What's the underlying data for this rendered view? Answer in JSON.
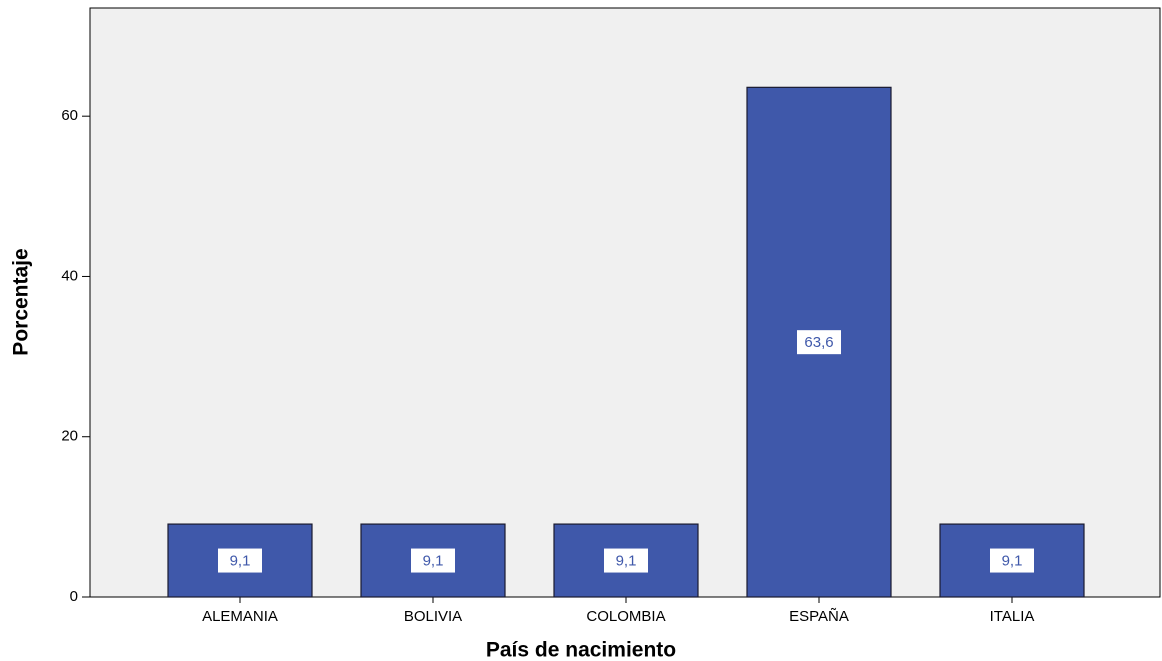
{
  "chart_data": {
    "type": "bar",
    "x_label": "País de nacimiento",
    "y_label": "Porcentaje",
    "categories": [
      "ALEMANIA",
      "BOLIVIA",
      "COLOMBIA",
      "ESPAÑA",
      "ITALIA"
    ],
    "values": [
      9.1,
      9.1,
      9.1,
      63.6,
      9.1
    ],
    "value_labels": [
      "9,1",
      "9,1",
      "9,1",
      "63,6",
      "9,1"
    ],
    "color": "#3f58aa",
    "ylim": [
      0,
      73.5
    ],
    "yticks": [
      0,
      20,
      40,
      60
    ]
  }
}
